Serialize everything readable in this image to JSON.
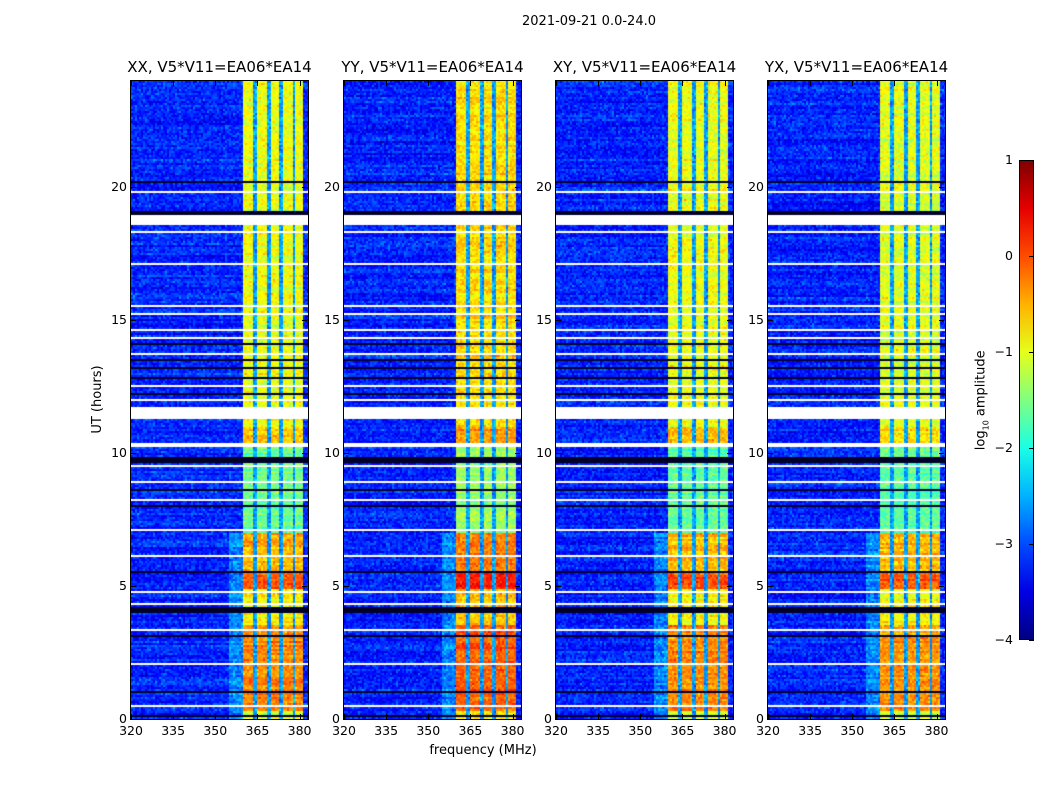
{
  "suptitle": "2021-09-21 0.0-24.0",
  "chart_data": {
    "type": "heatmap",
    "xlabel": "frequency (MHz)",
    "ylabel": "UT (hours)",
    "xlim": [
      320,
      383
    ],
    "ylim": [
      0,
      24
    ],
    "xticks": [
      320,
      335,
      350,
      365,
      380
    ],
    "yticks": [
      0,
      5,
      10,
      15,
      20
    ],
    "colorbar": {
      "label_main": "log",
      "label_sub": "10",
      "label_rest": " amplitude",
      "range": [
        -4,
        1
      ],
      "ticks": [
        1,
        0,
        -1,
        -2,
        -3,
        -4
      ],
      "colormap": "jet"
    },
    "panels": [
      {
        "title": "XX, V5*V11=EA06*EA14",
        "band_offset": 0.0
      },
      {
        "title": "YY, V5*V11=EA06*EA14",
        "band_offset": 0.25
      },
      {
        "title": "XY, V5*V11=EA06*EA14",
        "band_offset": 0.0
      },
      {
        "title": "YX, V5*V11=EA06*EA14",
        "band_offset": -0.05
      }
    ],
    "background_level": -3.2,
    "band_freq_range_mhz": [
      360,
      381
    ],
    "band_gap_freqs_mhz": [
      364.2,
      369,
      373.5,
      378
    ],
    "band_levels_by_time": [
      {
        "t": [
          0,
          0.3
        ],
        "level": -1.0
      },
      {
        "t": [
          0.3,
          3.5
        ],
        "level": -0.3
      },
      {
        "t": [
          3.5,
          4.9
        ],
        "level": -0.8
      },
      {
        "t": [
          4.9,
          5.5
        ],
        "level": 0.0
      },
      {
        "t": [
          5.5,
          7.0
        ],
        "level": -0.5
      },
      {
        "t": [
          7.0,
          10.2
        ],
        "level": -1.6
      },
      {
        "t": [
          10.4,
          11.0
        ],
        "level": -0.6
      },
      {
        "t": [
          11.0,
          24
        ],
        "level": -0.95
      }
    ],
    "flagged_white_hours": [
      [
        10.2,
        10.4
      ],
      [
        11.3,
        11.75
      ],
      [
        18.55,
        18.95
      ],
      [
        0.45,
        0.5
      ],
      [
        1.1,
        1.14
      ],
      [
        2.05,
        2.09
      ],
      [
        2.6,
        2.64
      ],
      [
        3.3,
        3.36
      ],
      [
        4.3,
        4.34
      ],
      [
        4.75,
        4.79
      ],
      [
        5.7,
        5.74
      ],
      [
        6.1,
        6.14
      ],
      [
        6.6,
        6.64
      ],
      [
        7.1,
        7.14
      ],
      [
        7.5,
        7.54
      ],
      [
        8.2,
        8.24
      ],
      [
        8.4,
        8.44
      ],
      [
        8.9,
        8.94
      ],
      [
        9.5,
        9.54
      ],
      [
        12.0,
        12.04
      ],
      [
        12.5,
        12.54
      ],
      [
        13.0,
        13.04
      ],
      [
        13.7,
        13.74
      ],
      [
        14.3,
        14.34
      ],
      [
        14.6,
        14.64
      ],
      [
        15.2,
        15.24
      ],
      [
        15.5,
        15.54
      ],
      [
        16.0,
        16.04
      ],
      [
        16.3,
        16.36
      ],
      [
        17.1,
        17.14
      ],
      [
        17.3,
        17.34
      ],
      [
        17.8,
        17.84
      ],
      [
        18.3,
        18.34
      ],
      [
        19.8,
        19.84
      ]
    ],
    "flagged_dark_hours": [
      [
        0.1,
        0.14
      ],
      [
        1.0,
        1.04
      ],
      [
        1.4,
        1.44
      ],
      [
        3.1,
        3.14
      ],
      [
        4.0,
        4.24
      ],
      [
        4.8,
        4.84
      ],
      [
        5.5,
        5.54
      ],
      [
        5.85,
        5.89
      ],
      [
        7.2,
        7.24
      ],
      [
        8.0,
        8.04
      ],
      [
        8.6,
        8.64
      ],
      [
        9.3,
        9.34
      ],
      [
        9.6,
        9.84
      ],
      [
        11.1,
        11.14
      ],
      [
        12.2,
        12.24
      ],
      [
        12.8,
        12.84
      ],
      [
        13.2,
        13.24
      ],
      [
        13.5,
        13.56
      ],
      [
        14.1,
        14.14
      ],
      [
        18.95,
        19.1
      ],
      [
        20.2,
        20.26
      ],
      [
        23.3,
        23.34
      ]
    ]
  }
}
